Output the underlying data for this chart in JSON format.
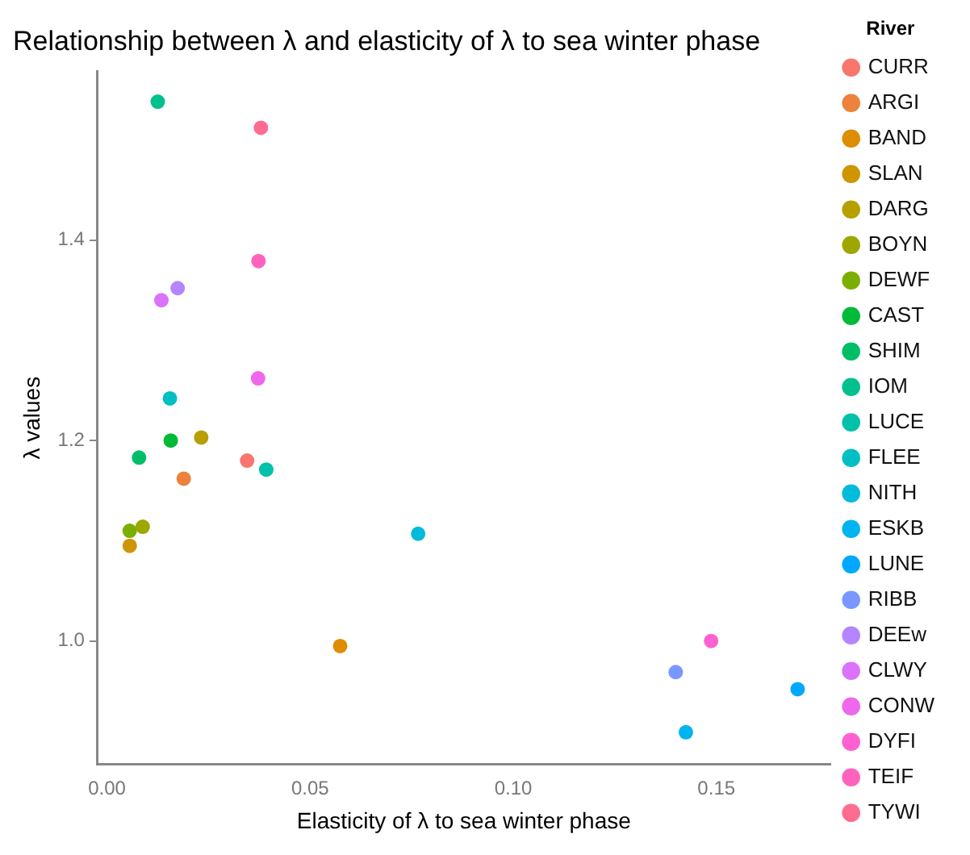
{
  "chart_data": {
    "type": "scatter",
    "title": "Relationship between λ and elasticity of λ to sea winter phase",
    "xlabel": "Elasticity of λ to sea winter phase",
    "ylabel": "λ values",
    "legend_title": "River",
    "legend": "right",
    "marker": "circle",
    "grid": false,
    "xlim": [
      -0.0023,
      0.178
    ],
    "xticks": [
      {
        "value": 0,
        "label": "0.00"
      },
      {
        "value": 0.05,
        "label": "0.05"
      },
      {
        "value": 0.1,
        "label": "0.10"
      },
      {
        "value": 0.15,
        "label": "0.15"
      }
    ],
    "ylim": [
      0.877,
      1.568
    ],
    "yticks": [
      {
        "value": 1,
        "label": "1.0"
      },
      {
        "value": 1.2,
        "label": "1.2"
      },
      {
        "value": 1.4,
        "label": "1.4"
      }
    ],
    "series": [
      {
        "name": "CURR",
        "color": "#f8766d",
        "x": [
          0.0345
        ],
        "values": [
          1.18
        ]
      },
      {
        "name": "ARGI",
        "color": "#ec823c",
        "x": [
          0.0189
        ],
        "values": [
          1.162
        ]
      },
      {
        "name": "BAND",
        "color": "#de8c00",
        "x": [
          0.0574
        ],
        "values": [
          0.995
        ]
      },
      {
        "name": "SLAN",
        "color": "#cd9600",
        "x": [
          0.0056
        ],
        "values": [
          1.095
        ]
      },
      {
        "name": "DARG",
        "color": "#b79f00",
        "x": [
          0.0232
        ],
        "values": [
          1.203
        ]
      },
      {
        "name": "BOYN",
        "color": "#9da700",
        "x": [
          0.0088
        ],
        "values": [
          1.114
        ]
      },
      {
        "name": "DEWF",
        "color": "#7cae00",
        "x": [
          0.0056
        ],
        "values": [
          1.11
        ]
      },
      {
        "name": "CAST",
        "color": "#00ba38",
        "x": [
          0.0157
        ],
        "values": [
          1.2
        ]
      },
      {
        "name": "SHIM",
        "color": "#00be67",
        "x": [
          0.0079
        ],
        "values": [
          1.183
        ]
      },
      {
        "name": "IOM",
        "color": "#00c08b",
        "x": [
          0.0125
        ],
        "values": [
          1.538
        ]
      },
      {
        "name": "LUCE",
        "color": "#00c1a9",
        "x": [
          0.0392
        ],
        "values": [
          1.171
        ]
      },
      {
        "name": "FLEE",
        "color": "#00bfc4",
        "x": [
          0.0155
        ],
        "values": [
          1.242
        ]
      },
      {
        "name": "NITH",
        "color": "#00bbdc",
        "x": [
          0.0766
        ],
        "values": [
          1.107
        ]
      },
      {
        "name": "ESKB",
        "color": "#00b4f0",
        "x": [
          0.1425
        ],
        "values": [
          0.909
        ]
      },
      {
        "name": "LUNE",
        "color": "#00a9ff",
        "x": [
          0.17
        ],
        "values": [
          0.952
        ]
      },
      {
        "name": "RIBB",
        "color": "#7997ff",
        "x": [
          0.14
        ],
        "values": [
          0.969
        ]
      },
      {
        "name": "DEEw",
        "color": "#b385ff",
        "x": [
          0.0174
        ],
        "values": [
          1.352
        ]
      },
      {
        "name": "CLWY",
        "color": "#db72fb",
        "x": [
          0.0134
        ],
        "values": [
          1.34
        ]
      },
      {
        "name": "CONW",
        "color": "#ef67eb",
        "x": [
          0.0372
        ],
        "values": [
          1.262
        ]
      },
      {
        "name": "DYFI",
        "color": "#fd61d1",
        "x": [
          0.1487
        ],
        "values": [
          1.0
        ]
      },
      {
        "name": "TEIF",
        "color": "#ff62bc",
        "x": [
          0.0373
        ],
        "values": [
          1.379
        ]
      },
      {
        "name": "TYWI",
        "color": "#ff6c91",
        "x": [
          0.0379
        ],
        "values": [
          1.512
        ]
      }
    ]
  }
}
